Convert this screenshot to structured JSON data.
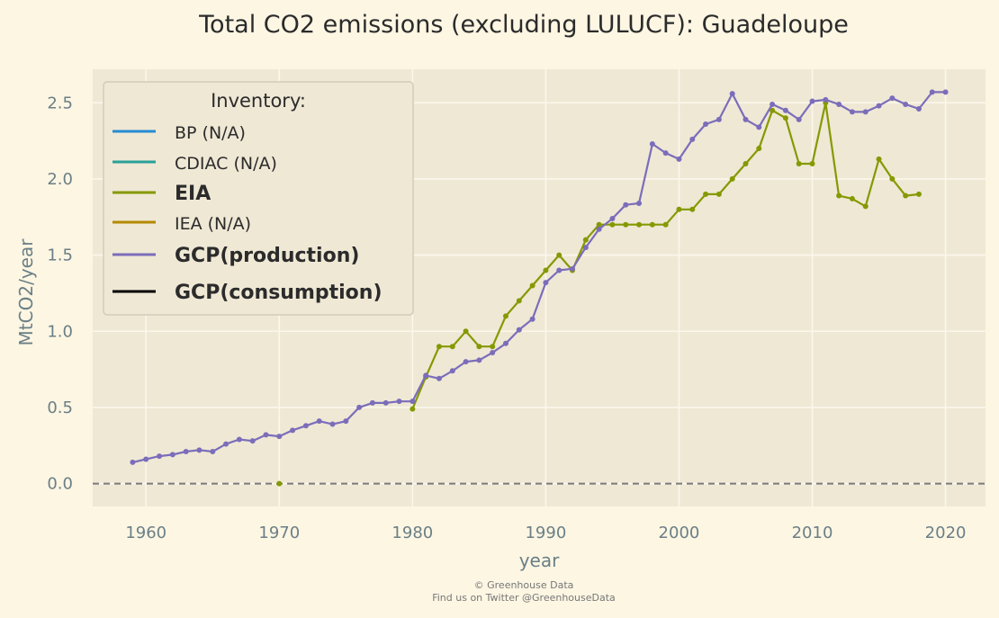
{
  "chart_data": {
    "type": "line",
    "title": "Total CO2 emissions (excluding LULUCF): Guadeloupe",
    "xlabel": "year",
    "ylabel": "MtCO2/year",
    "xlim": [
      1956,
      2023
    ],
    "ylim": [
      -0.15,
      2.72
    ],
    "xticks": [
      1960,
      1970,
      1980,
      1990,
      2000,
      2010,
      2020
    ],
    "yticks": [
      0.0,
      0.5,
      1.0,
      1.5,
      2.0,
      2.5
    ],
    "xtick_labels": [
      "1960",
      "1970",
      "1980",
      "1990",
      "2000",
      "2010",
      "2020"
    ],
    "ytick_labels": [
      "0.0",
      "0.5",
      "1.0",
      "1.5",
      "2.0",
      "2.5"
    ],
    "grid": true,
    "zero_line": {
      "y": 0,
      "style": "dashed",
      "color": "#7a7a7a"
    },
    "legend": {
      "title": "Inventory:",
      "placement": "top-left",
      "entries": [
        {
          "label": "BP (N/A)",
          "color": "#268bd2",
          "bold": false
        },
        {
          "label": "CDIAC (N/A)",
          "color": "#2aa198",
          "bold": false
        },
        {
          "label": "EIA",
          "color": "#859900",
          "bold": true
        },
        {
          "label": "IEA (N/A)",
          "color": "#b58900",
          "bold": false
        },
        {
          "label": "GCP(production)",
          "color": "#7b6dba",
          "bold": true
        },
        {
          "label": "GCP(consumption)",
          "color": "#000000",
          "bold": true
        }
      ]
    },
    "series": [
      {
        "name": "EIA",
        "color": "#859900",
        "x": [
          1980,
          1981,
          1982,
          1983,
          1984,
          1985,
          1986,
          1987,
          1988,
          1989,
          1990,
          1991,
          1992,
          1993,
          1994,
          1995,
          1996,
          1997,
          1998,
          1999,
          2000,
          2001,
          2002,
          2003,
          2004,
          2005,
          2006,
          2007,
          2008,
          2009,
          2010,
          2011,
          2012,
          2013,
          2014,
          2015,
          2016,
          2017,
          2018
        ],
        "y": [
          0.49,
          0.7,
          0.9,
          0.9,
          1.0,
          0.9,
          0.9,
          1.1,
          1.2,
          1.3,
          1.4,
          1.5,
          1.4,
          1.6,
          1.7,
          1.7,
          1.7,
          1.7,
          1.7,
          1.7,
          1.8,
          1.8,
          1.9,
          1.9,
          2.0,
          2.1,
          2.2,
          2.45,
          2.4,
          2.1,
          2.1,
          2.5,
          1.89,
          1.87,
          1.82,
          2.13,
          2.0,
          1.89,
          1.9
        ]
      },
      {
        "name": "EIA",
        "color": "#859900",
        "x": [
          1970
        ],
        "y": [
          0.0
        ]
      },
      {
        "name": "GCP(production)",
        "color": "#7b6dba",
        "x": [
          1959,
          1960,
          1961,
          1962,
          1963,
          1964,
          1965,
          1966,
          1967,
          1968,
          1969,
          1970,
          1971,
          1972,
          1973,
          1974,
          1975,
          1976,
          1977,
          1978,
          1979,
          1980,
          1981,
          1982,
          1983,
          1984,
          1985,
          1986,
          1987,
          1988,
          1989,
          1990,
          1991,
          1992,
          1993,
          1994,
          1995,
          1996,
          1997,
          1998,
          1999,
          2000,
          2001,
          2002,
          2003,
          2004,
          2005,
          2006,
          2007,
          2008,
          2009,
          2010,
          2011,
          2012,
          2013,
          2014,
          2015,
          2016,
          2017,
          2018,
          2019,
          2020
        ],
        "y": [
          0.14,
          0.16,
          0.18,
          0.19,
          0.21,
          0.22,
          0.21,
          0.26,
          0.29,
          0.28,
          0.32,
          0.31,
          0.35,
          0.38,
          0.41,
          0.39,
          0.41,
          0.5,
          0.53,
          0.53,
          0.54,
          0.54,
          0.71,
          0.69,
          0.74,
          0.8,
          0.81,
          0.86,
          0.92,
          1.01,
          1.08,
          1.32,
          1.4,
          1.41,
          1.55,
          1.67,
          1.74,
          1.83,
          1.84,
          2.23,
          2.17,
          2.13,
          2.26,
          2.36,
          2.39,
          2.56,
          2.39,
          2.34,
          2.49,
          2.45,
          2.39,
          2.51,
          2.52,
          2.49,
          2.44,
          2.44,
          2.48,
          2.53,
          2.49,
          2.46,
          2.57,
          2.57
        ]
      }
    ]
  },
  "footer": {
    "line1": "© Greenhouse Data",
    "line2": "Find us on Twitter @GreenhouseData"
  },
  "colors": {
    "background": "#fcf6e3",
    "plot_background": "#efe8d5",
    "grid": "#fbf7ec"
  }
}
